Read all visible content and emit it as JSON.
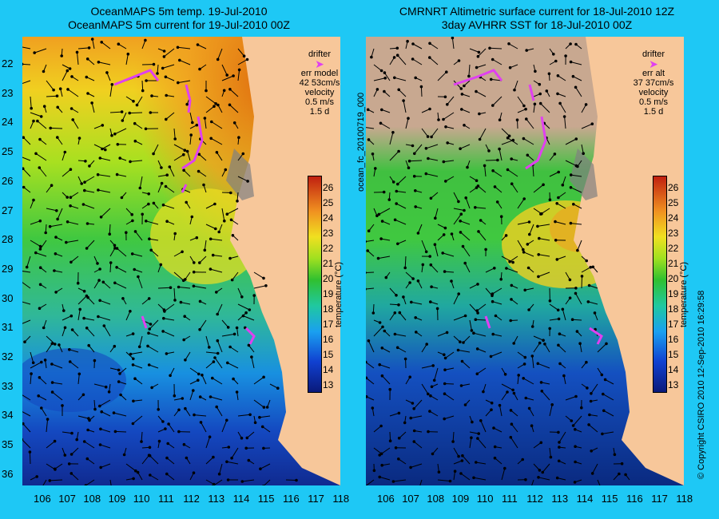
{
  "titles": {
    "left_line1": "OceanMAPS 5m temp. 19-Jul-2010",
    "left_line2": "OceanMAPS 5m current for 19-Jul-2010 00Z",
    "right_line1": "CMRNRT Altimetric surface current for 18-Jul-2010 12Z",
    "right_line2": "3day AVHRR SST for 18-Jul-2010 00Z"
  },
  "left_legend": {
    "drifter": "drifter",
    "err_label": "err model",
    "err_value": "42 53cm/s",
    "velocity": "velocity",
    "speed": "0.5 m/s",
    "duration": "1.5 d"
  },
  "right_legend": {
    "drifter": "drifter",
    "err_label": "err alt",
    "err_value": "37 37cm/s",
    "velocity": "velocity",
    "speed": "0.5 m/s",
    "duration": "1.5 d"
  },
  "colorbar": {
    "label": "temperature (°C)",
    "ticks": [
      "26",
      "25",
      "24",
      "23",
      "22",
      "21",
      "20",
      "19",
      "18",
      "17",
      "16",
      "15",
      "14",
      "13"
    ]
  },
  "y_ticks": [
    "22",
    "23",
    "24",
    "25",
    "26",
    "27",
    "28",
    "29",
    "30",
    "31",
    "32",
    "33",
    "34",
    "35",
    "36"
  ],
  "x_ticks": [
    "106",
    "107",
    "108",
    "109",
    "110",
    "111",
    "112",
    "113",
    "114",
    "115",
    "116",
    "117",
    "118"
  ],
  "side_text": {
    "file_id": "ocean_fc_20100719_000",
    "copyright": "© Copyright CSIRO 2010   12-Sep-2010 16:29:58"
  },
  "colors": {
    "background": "#1ec8f5",
    "land": "#f7c79a",
    "drifter": "#e040f0",
    "arrows": "#000000",
    "no_data": "#c8a890"
  }
}
